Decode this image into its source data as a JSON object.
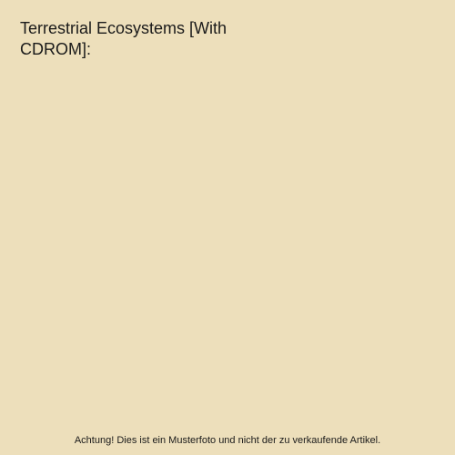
{
  "background_color": "#eddfbb",
  "title": {
    "text": "Terrestrial Ecosystems [With CDROM]:",
    "color": "#1a1a1a",
    "fontsize": 18
  },
  "disclaimer": {
    "text": "Achtung! Dies ist ein Musterfoto und nicht der zu verkaufende Artikel.",
    "color": "#1a1a1a",
    "fontsize": 11
  }
}
